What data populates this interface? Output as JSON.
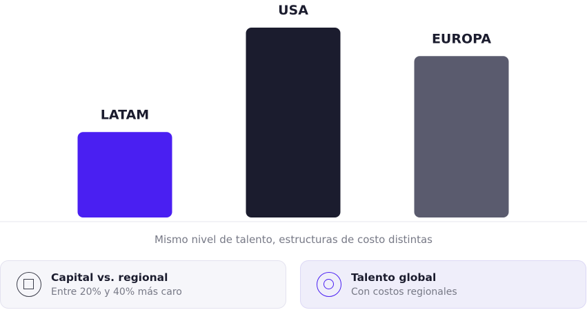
{
  "chart_data": {
    "type": "bar",
    "categories": [
      "LATAM",
      "USA",
      "EUROPA"
    ],
    "values": [
      45,
      100,
      85
    ],
    "colors": [
      "#4a1ff2",
      "#1b1c2e",
      "#5a5b6e"
    ],
    "ylim": [
      0,
      100
    ],
    "grid": false,
    "caption": "Mismo nivel de talento, estructuras de costo distintas"
  },
  "cards": [
    {
      "title": "Capital vs. regional",
      "subtitle": "Entre 20% y 40% más caro",
      "icon": "square-in-circle-icon"
    },
    {
      "title": "Talento global",
      "subtitle": "Con costos regionales",
      "icon": "target-icon"
    }
  ]
}
